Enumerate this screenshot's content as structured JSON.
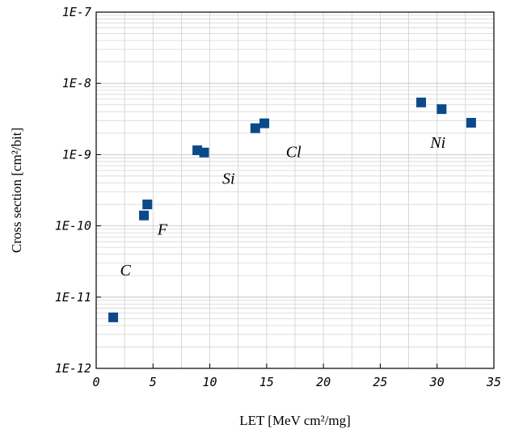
{
  "chart_data": {
    "type": "scatter",
    "title": "",
    "xlabel": "LET [MeV cm²/mg]",
    "ylabel": "Cross section [cm²/bit]",
    "xlim": [
      0,
      35
    ],
    "ylim": [
      1e-12,
      1e-07
    ],
    "yscale": "log",
    "grid": true,
    "x_ticks": [
      "0",
      "5",
      "10",
      "15",
      "20",
      "25",
      "30",
      "35"
    ],
    "y_ticks": [
      "1E-12",
      "1E-11",
      "1E-10",
      "1E-9",
      "1E-8",
      "1E-7"
    ],
    "marker_color": "#0b4a8a",
    "marker": "square",
    "series": [
      {
        "points": [
          {
            "x": 1.5,
            "y": 5.2e-12
          },
          {
            "x": 4.2,
            "y": 1.4e-10
          },
          {
            "x": 4.5,
            "y": 2e-10
          },
          {
            "x": 8.9,
            "y": 1.15e-09
          },
          {
            "x": 9.5,
            "y": 1.07e-09
          },
          {
            "x": 14.0,
            "y": 2.35e-09
          },
          {
            "x": 14.8,
            "y": 2.75e-09
          },
          {
            "x": 28.6,
            "y": 5.4e-09
          },
          {
            "x": 30.4,
            "y": 4.35e-09
          },
          {
            "x": 33.0,
            "y": 2.8e-09
          }
        ]
      }
    ],
    "annotations": [
      {
        "text": "C",
        "x": 2.1,
        "y": 2e-11
      },
      {
        "text": "F",
        "x": 5.4,
        "y": 7.5e-11
      },
      {
        "text": "Si",
        "x": 11.1,
        "y": 3.9e-10
      },
      {
        "text": "Cl",
        "x": 16.7,
        "y": 9.2e-10
      },
      {
        "text": "Ni",
        "x": 29.4,
        "y": 1.25e-09
      }
    ]
  }
}
